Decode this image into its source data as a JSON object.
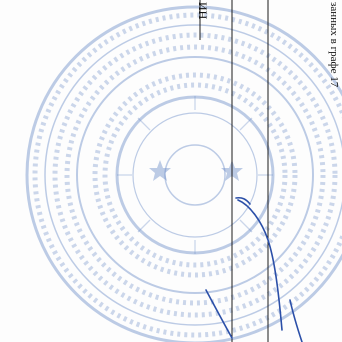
{
  "document": {
    "right_margin_text": "занных в графе 17",
    "column_top_text": "ИН",
    "stamp_color": "#6f8fc9",
    "line_color": "#1a1a1a",
    "signature_color": "#2b4fa8"
  }
}
